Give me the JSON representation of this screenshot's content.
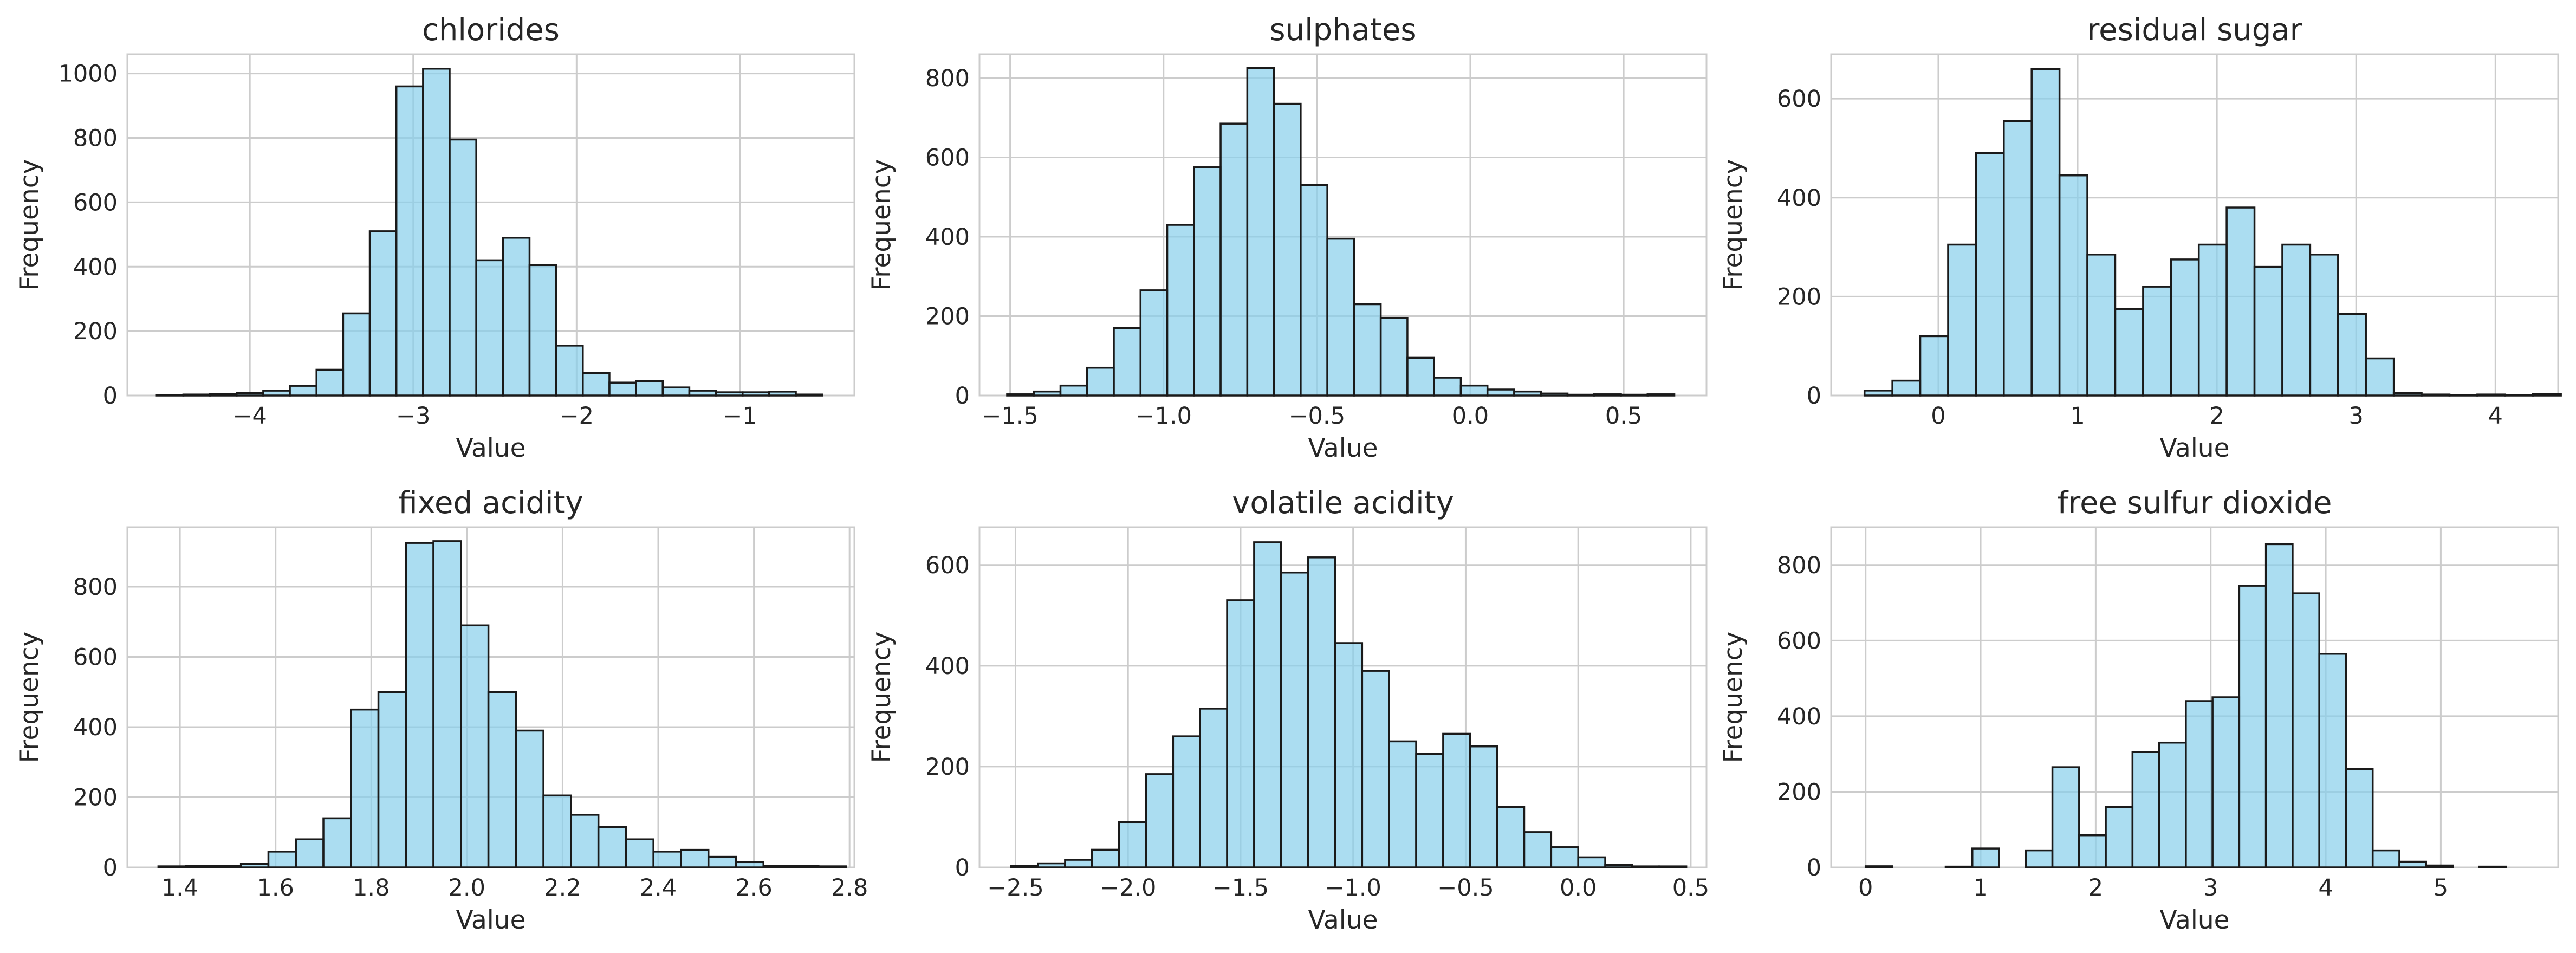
{
  "chart_data": [
    {
      "type": "bar",
      "title": "chlorides",
      "xlabel": "Value",
      "ylabel": "Frequency",
      "xlim": [
        -4.75,
        -0.3
      ],
      "ylim": [
        0,
        1060
      ],
      "xticks": [
        -4,
        -3,
        -2,
        -1
      ],
      "xtick_labels": [
        "−4",
        "−3",
        "−2",
        "−1"
      ],
      "yticks": [
        0,
        200,
        400,
        600,
        800,
        1000
      ],
      "ytick_labels": [
        "0",
        "200",
        "400",
        "600",
        "800",
        "1000"
      ],
      "bin_start": -4.57,
      "bin_width": 0.163,
      "values": [
        2,
        3,
        5,
        8,
        15,
        30,
        80,
        255,
        510,
        960,
        1015,
        795,
        420,
        490,
        405,
        155,
        70,
        40,
        45,
        25,
        15,
        10,
        10,
        12,
        3
      ],
      "grid": true
    },
    {
      "type": "bar",
      "title": "sulphates",
      "xlabel": "Value",
      "ylabel": "Frequency",
      "xlim": [
        -1.6,
        0.77
      ],
      "ylim": [
        0,
        860
      ],
      "xticks": [
        -1.5,
        -1.0,
        -0.5,
        0.0,
        0.5
      ],
      "xtick_labels": [
        "−1.5",
        "−1.0",
        "−0.5",
        "0.0",
        "0.5"
      ],
      "yticks": [
        0,
        200,
        400,
        600,
        800
      ],
      "ytick_labels": [
        "0",
        "200",
        "400",
        "600",
        "800"
      ],
      "bin_start": -1.51,
      "bin_width": 0.087,
      "values": [
        3,
        10,
        25,
        70,
        170,
        265,
        430,
        575,
        685,
        825,
        735,
        530,
        395,
        230,
        195,
        95,
        45,
        25,
        15,
        10,
        5,
        2,
        3,
        2,
        3
      ],
      "grid": true
    },
    {
      "type": "bar",
      "title": "residual sugar",
      "xlabel": "Value",
      "ylabel": "Frequency",
      "xlim": [
        -0.77,
        4.45
      ],
      "ylim": [
        0,
        690
      ],
      "xticks": [
        0,
        1,
        2,
        3,
        4
      ],
      "xtick_labels": [
        "0",
        "1",
        "2",
        "3",
        "4"
      ],
      "yticks": [
        0,
        200,
        400,
        600
      ],
      "ytick_labels": [
        "0",
        "200",
        "400",
        "600"
      ],
      "bin_start": -0.53,
      "bin_width": 0.2,
      "values": [
        10,
        30,
        120,
        305,
        490,
        555,
        660,
        445,
        285,
        175,
        220,
        275,
        305,
        380,
        260,
        305,
        285,
        165,
        75,
        5,
        2,
        1,
        2,
        1,
        3
      ],
      "grid": true
    },
    {
      "type": "bar",
      "title": "fixed acidity",
      "xlabel": "Value",
      "ylabel": "Frequency",
      "xlim": [
        1.29,
        2.81
      ],
      "ylim": [
        0,
        970
      ],
      "xticks": [
        1.4,
        1.6,
        1.8,
        2.0,
        2.2,
        2.4,
        2.6,
        2.8
      ],
      "xtick_labels": [
        "1.4",
        "1.6",
        "1.8",
        "2.0",
        "2.2",
        "2.4",
        "2.6",
        "2.8"
      ],
      "yticks": [
        0,
        200,
        400,
        600,
        800
      ],
      "ytick_labels": [
        "0",
        "200",
        "400",
        "600",
        "800"
      ],
      "bin_start": 1.355,
      "bin_width": 0.0575,
      "values": [
        3,
        4,
        5,
        10,
        45,
        80,
        140,
        450,
        500,
        925,
        930,
        690,
        500,
        390,
        205,
        150,
        115,
        80,
        45,
        50,
        30,
        15,
        5,
        5,
        3
      ],
      "grid": true
    },
    {
      "type": "bar",
      "title": "volatile acidity",
      "xlabel": "Value",
      "ylabel": "Frequency",
      "xlim": [
        -2.66,
        0.57
      ],
      "ylim": [
        0,
        675
      ],
      "xticks": [
        -2.5,
        -2.0,
        -1.5,
        -1.0,
        -0.5,
        0.0,
        0.5
      ],
      "xtick_labels": [
        "−2.5",
        "−2.0",
        "−1.5",
        "−1.0",
        "−0.5",
        "0.0",
        "0.5"
      ],
      "yticks": [
        0,
        200,
        400,
        600
      ],
      "ytick_labels": [
        "0",
        "200",
        "400",
        "600"
      ],
      "bin_start": -2.52,
      "bin_width": 0.12,
      "values": [
        3,
        8,
        15,
        35,
        90,
        185,
        260,
        315,
        530,
        645,
        585,
        615,
        445,
        390,
        250,
        225,
        265,
        240,
        120,
        70,
        40,
        20,
        5,
        2,
        2
      ],
      "grid": true
    },
    {
      "type": "bar",
      "title": "free sulfur dioxide",
      "xlabel": "Value",
      "ylabel": "Frequency",
      "xlim": [
        -0.3,
        6.02
      ],
      "ylim": [
        0,
        900
      ],
      "xticks": [
        0,
        1,
        2,
        3,
        4,
        5
      ],
      "xtick_labels": [
        "0",
        "1",
        "2",
        "3",
        "4",
        "5"
      ],
      "yticks": [
        0,
        200,
        400,
        600,
        800
      ],
      "ytick_labels": [
        "0",
        "200",
        "400",
        "600",
        "800"
      ],
      "bin_start": 0.0,
      "bin_width": 0.232,
      "values": [
        3,
        0,
        0,
        2,
        50,
        0,
        45,
        265,
        85,
        160,
        305,
        330,
        440,
        450,
        745,
        855,
        725,
        565,
        260,
        45,
        15,
        5,
        0,
        2,
        0
      ],
      "grid": true
    }
  ]
}
